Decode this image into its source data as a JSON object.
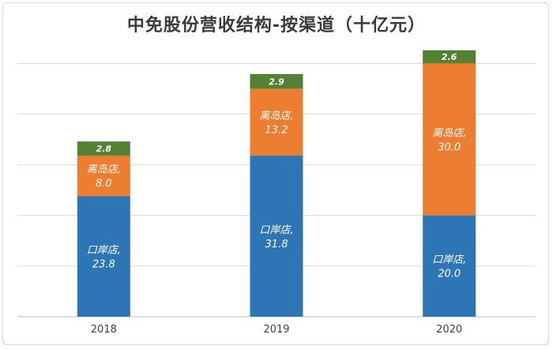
{
  "chart_data": {
    "type": "bar",
    "stacked": true,
    "title": "中免股份营收结构-按渠道（十亿元）",
    "xlabel": "",
    "ylabel": "",
    "categories": [
      "2018",
      "2019",
      "2020"
    ],
    "ylim": [
      0,
      53.5
    ],
    "grid": true,
    "legend": "none",
    "series": [
      {
        "name": "口岸店",
        "values": [
          23.8,
          31.8,
          20.0
        ],
        "color": "#2e75b6",
        "labels": [
          "口岸店,\n23.8",
          "口岸店,\n31.8",
          "口岸店,\n20.0"
        ]
      },
      {
        "name": "离岛店",
        "values": [
          8.0,
          13.2,
          30.0
        ],
        "color": "#ed7d31",
        "labels": [
          "离岛店,\n8.0",
          "离岛店,\n13.2",
          "离岛店,\n30.0"
        ]
      },
      {
        "name": "",
        "values": [
          2.8,
          2.9,
          2.6
        ],
        "color": "#548235",
        "labels": [
          "2.8",
          "2.9",
          "2.6"
        ]
      }
    ]
  }
}
